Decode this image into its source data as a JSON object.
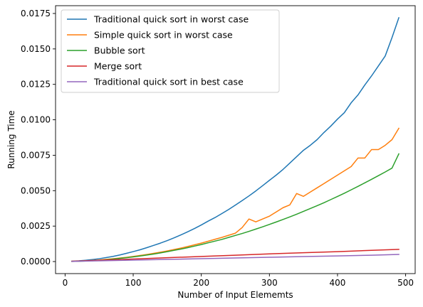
{
  "chart_data": {
    "type": "line",
    "title": "",
    "xlabel": "Number of Input Elememts",
    "ylabel": "Running Time",
    "xlim": [
      -14,
      514
    ],
    "ylim": [
      -0.00085,
      0.01805
    ],
    "xticks": [
      0,
      100,
      200,
      300,
      400,
      500
    ],
    "yticks": [
      0.0,
      0.0025,
      0.005,
      0.0075,
      0.01,
      0.0125,
      0.015,
      0.0175
    ],
    "ytick_labels": [
      "0.0000",
      "0.0025",
      "0.0050",
      "0.0075",
      "0.0100",
      "0.0125",
      "0.0150",
      "0.0175"
    ],
    "grid": false,
    "legend_position": "top-left",
    "series": [
      {
        "name": "Traditional quick sort in worst case",
        "color": "#1f77b4",
        "x": [
          10,
          20,
          30,
          40,
          50,
          60,
          70,
          80,
          90,
          100,
          110,
          120,
          130,
          140,
          150,
          160,
          170,
          180,
          190,
          200,
          210,
          220,
          230,
          240,
          250,
          260,
          270,
          280,
          290,
          300,
          310,
          320,
          330,
          340,
          350,
          360,
          370,
          380,
          390,
          400,
          410,
          420,
          430,
          440,
          450,
          460,
          470,
          480,
          490
        ],
        "y": [
          3e-05,
          5e-05,
          9e-05,
          0.00014,
          0.0002,
          0.00028,
          0.00036,
          0.00046,
          0.00058,
          0.0007,
          0.00083,
          0.00098,
          0.00114,
          0.0013,
          0.00148,
          0.00167,
          0.00188,
          0.0021,
          0.00233,
          0.00258,
          0.00285,
          0.0031,
          0.00338,
          0.00367,
          0.00398,
          0.0043,
          0.00463,
          0.00498,
          0.00535,
          0.00573,
          0.0061,
          0.0065,
          0.00695,
          0.0074,
          0.00785,
          0.0082,
          0.0086,
          0.0091,
          0.00955,
          0.01005,
          0.0105,
          0.0112,
          0.01175,
          0.01245,
          0.0131,
          0.0138,
          0.0145,
          0.0158,
          0.0172
        ]
      },
      {
        "name": "Simple quick sort in worst case",
        "color": "#ff7f0e",
        "x": [
          10,
          20,
          30,
          40,
          50,
          60,
          70,
          80,
          90,
          100,
          110,
          120,
          130,
          140,
          150,
          160,
          170,
          180,
          190,
          200,
          210,
          220,
          230,
          240,
          250,
          260,
          270,
          280,
          290,
          300,
          310,
          320,
          330,
          340,
          350,
          360,
          370,
          380,
          390,
          400,
          410,
          420,
          430,
          440,
          450,
          460,
          470,
          480,
          490
        ],
        "y": [
          2e-05,
          3e-05,
          5e-05,
          8e-05,
          0.00011,
          0.00015,
          0.0002,
          0.00025,
          0.0003,
          0.00036,
          0.00043,
          0.0005,
          0.00058,
          0.00066,
          0.00075,
          0.00085,
          0.00095,
          0.00106,
          0.00118,
          0.0013,
          0.00143,
          0.00157,
          0.0017,
          0.00185,
          0.002,
          0.0024,
          0.003,
          0.0028,
          0.003,
          0.0032,
          0.0035,
          0.0038,
          0.004,
          0.0048,
          0.0046,
          0.0049,
          0.0052,
          0.0055,
          0.0058,
          0.0061,
          0.0064,
          0.0067,
          0.0073,
          0.0073,
          0.0079,
          0.0079,
          0.0082,
          0.0086,
          0.0094
        ]
      },
      {
        "name": "Bubble sort",
        "color": "#2ca02c",
        "x": [
          10,
          20,
          30,
          40,
          50,
          60,
          70,
          80,
          90,
          100,
          110,
          120,
          130,
          140,
          150,
          160,
          170,
          180,
          190,
          200,
          210,
          220,
          230,
          240,
          250,
          260,
          270,
          280,
          290,
          300,
          310,
          320,
          330,
          340,
          350,
          360,
          370,
          380,
          390,
          400,
          410,
          420,
          430,
          440,
          450,
          460,
          470,
          480,
          490
        ],
        "y": [
          1e-05,
          2e-05,
          4e-05,
          6e-05,
          9e-05,
          0.00013,
          0.00017,
          0.00022,
          0.00027,
          0.00033,
          0.00039,
          0.00046,
          0.00053,
          0.00061,
          0.0007,
          0.00079,
          0.00088,
          0.00098,
          0.00109,
          0.0012,
          0.00132,
          0.00144,
          0.00156,
          0.0017,
          0.00184,
          0.00198,
          0.00213,
          0.00229,
          0.00245,
          0.00262,
          0.00279,
          0.00297,
          0.00315,
          0.00334,
          0.00354,
          0.00374,
          0.00394,
          0.00415,
          0.00437,
          0.00459,
          0.00482,
          0.00506,
          0.0053,
          0.00555,
          0.0058,
          0.00606,
          0.00632,
          0.00659,
          0.0076
        ]
      },
      {
        "name": "Merge sort",
        "color": "#d62728",
        "x": [
          10,
          50,
          100,
          150,
          200,
          250,
          300,
          350,
          400,
          450,
          490
        ],
        "y": [
          2e-05,
          9e-05,
          0.00018,
          0.00027,
          0.00036,
          0.00045,
          0.00054,
          0.00062,
          0.0007,
          0.00079,
          0.00086
        ]
      },
      {
        "name": "Traditional quick sort in best case",
        "color": "#9467bd",
        "x": [
          10,
          50,
          100,
          150,
          200,
          250,
          300,
          350,
          400,
          450,
          490
        ],
        "y": [
          1e-05,
          5e-05,
          0.0001,
          0.00015,
          0.0002,
          0.00025,
          0.0003,
          0.00035,
          0.0004,
          0.00045,
          0.0005
        ]
      }
    ]
  }
}
